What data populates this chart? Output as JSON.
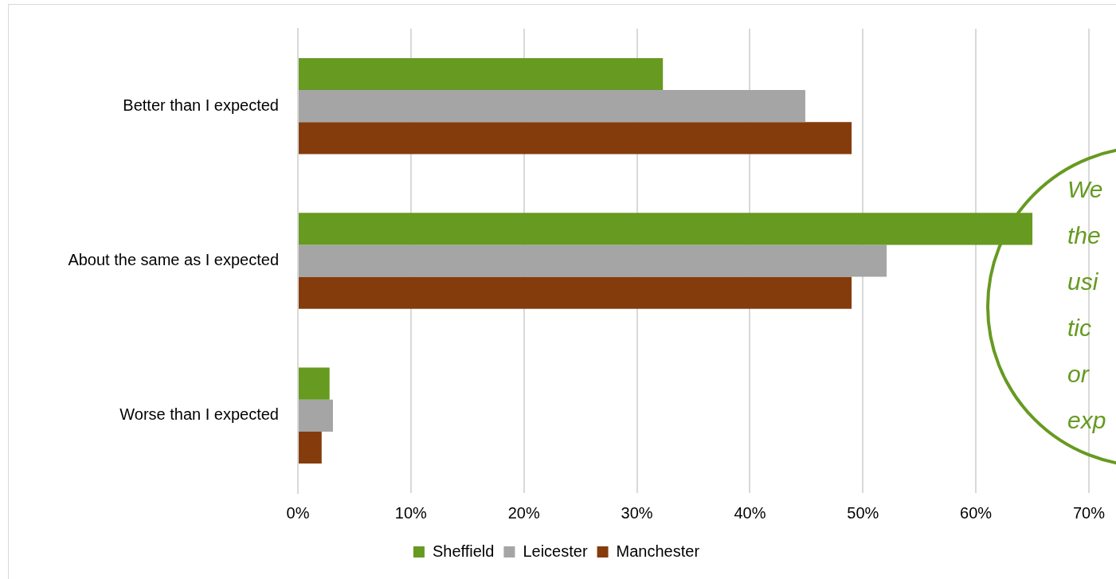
{
  "chart_data": {
    "type": "bar",
    "orientation": "horizontal",
    "categories": [
      "Better than I expected",
      "About the same as I expected",
      "Worse than I expected"
    ],
    "series": [
      {
        "name": "Sheffield",
        "color": "#669a21",
        "values": [
          32.3,
          65.0,
          2.8
        ]
      },
      {
        "name": "Leicester",
        "color": "#a5a5a5",
        "values": [
          44.9,
          52.1,
          3.1
        ]
      },
      {
        "name": "Manchester",
        "color": "#843c0c",
        "values": [
          49.0,
          49.0,
          2.1
        ]
      }
    ],
    "xlim": [
      0,
      70
    ],
    "xticks": [
      {
        "value": 0,
        "label": "0%"
      },
      {
        "value": 10,
        "label": "10%"
      },
      {
        "value": 20,
        "label": "20%"
      },
      {
        "value": 30,
        "label": "30%"
      },
      {
        "value": 40,
        "label": "40%"
      },
      {
        "value": 50,
        "label": "50%"
      },
      {
        "value": 60,
        "label": "60%"
      },
      {
        "value": 70,
        "label": "70%"
      }
    ],
    "grid": "x",
    "legend": "bottom",
    "annotations": [
      "We\nthe\nusi\ntic\nor\nexp"
    ]
  }
}
